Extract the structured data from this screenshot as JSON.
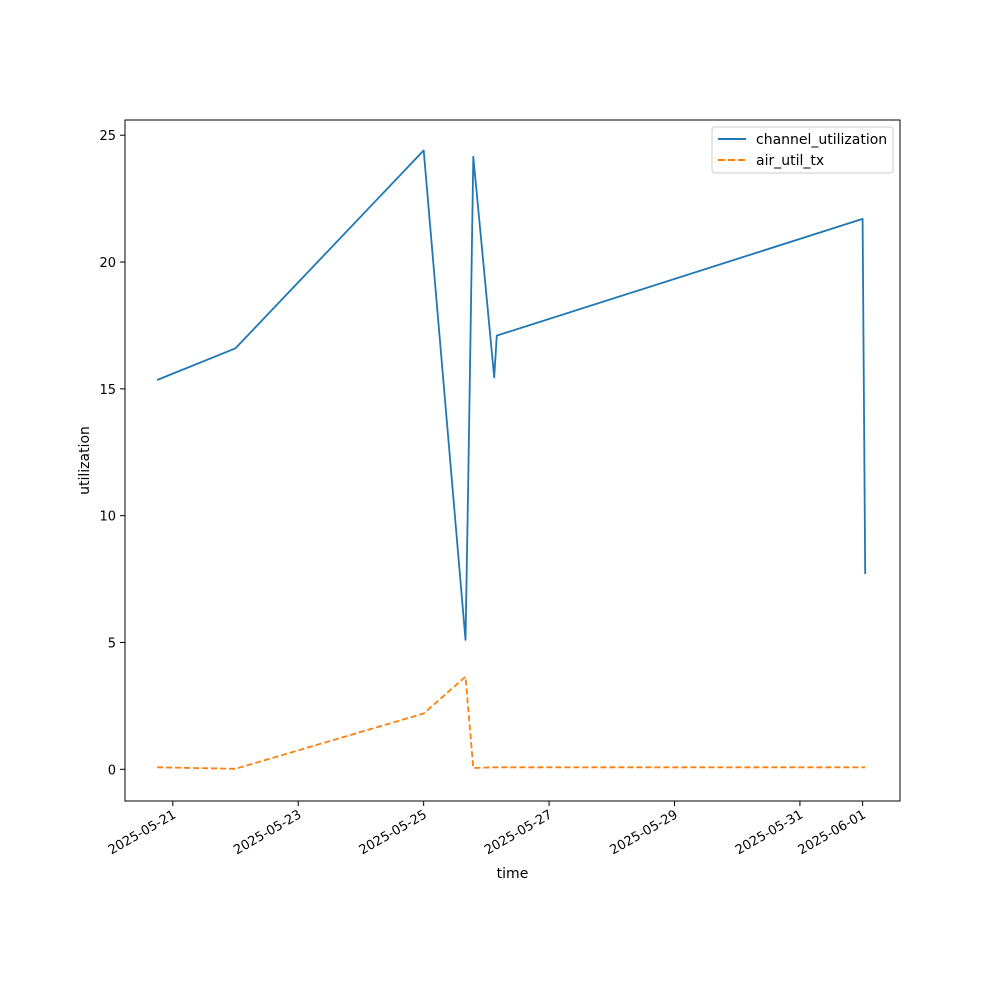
{
  "chart_data": {
    "type": "line",
    "xlabel": "time",
    "ylabel": "utilization",
    "x_axis_type": "date",
    "xlim": [
      "2025-05-20T05:42",
      "2025-06-01T14:18"
    ],
    "ylim": [
      -1.25,
      25.6
    ],
    "x_ticks": [
      "2025-05-21",
      "2025-05-23",
      "2025-05-25",
      "2025-05-27",
      "2025-05-29",
      "2025-05-31",
      "2025-06-01"
    ],
    "y_ticks": [
      0,
      5,
      10,
      15,
      20,
      25
    ],
    "grid": false,
    "legend_position": "upper right",
    "series": [
      {
        "name": "channel_utilization",
        "color": "#1f77b4",
        "line_style": "solid",
        "points": [
          {
            "x": "2025-05-20T18:00",
            "y": 15.35
          },
          {
            "x": "2025-05-22T00:00",
            "y": 16.6
          },
          {
            "x": "2025-05-25T00:00",
            "y": 24.4
          },
          {
            "x": "2025-05-25T16:00",
            "y": 5.1
          },
          {
            "x": "2025-05-25T17:00",
            "y": 11.0
          },
          {
            "x": "2025-05-25T19:00",
            "y": 24.15
          },
          {
            "x": "2025-05-26T03:00",
            "y": 15.45
          },
          {
            "x": "2025-05-26T04:00",
            "y": 17.1
          },
          {
            "x": "2025-06-01T00:00",
            "y": 21.7
          },
          {
            "x": "2025-06-01T01:00",
            "y": 7.7
          }
        ]
      },
      {
        "name": "air_util_tx",
        "color": "#ff7f0e",
        "line_style": "dashed",
        "points": [
          {
            "x": "2025-05-20T18:00",
            "y": 0.08
          },
          {
            "x": "2025-05-22T00:00",
            "y": 0.02
          },
          {
            "x": "2025-05-25T00:00",
            "y": 2.2
          },
          {
            "x": "2025-05-25T16:00",
            "y": 3.65
          },
          {
            "x": "2025-05-25T19:00",
            "y": 0.05
          },
          {
            "x": "2025-05-26T03:00",
            "y": 0.08
          },
          {
            "x": "2025-06-01T00:00",
            "y": 0.08
          },
          {
            "x": "2025-06-01T01:00",
            "y": 0.08
          }
        ]
      }
    ]
  }
}
